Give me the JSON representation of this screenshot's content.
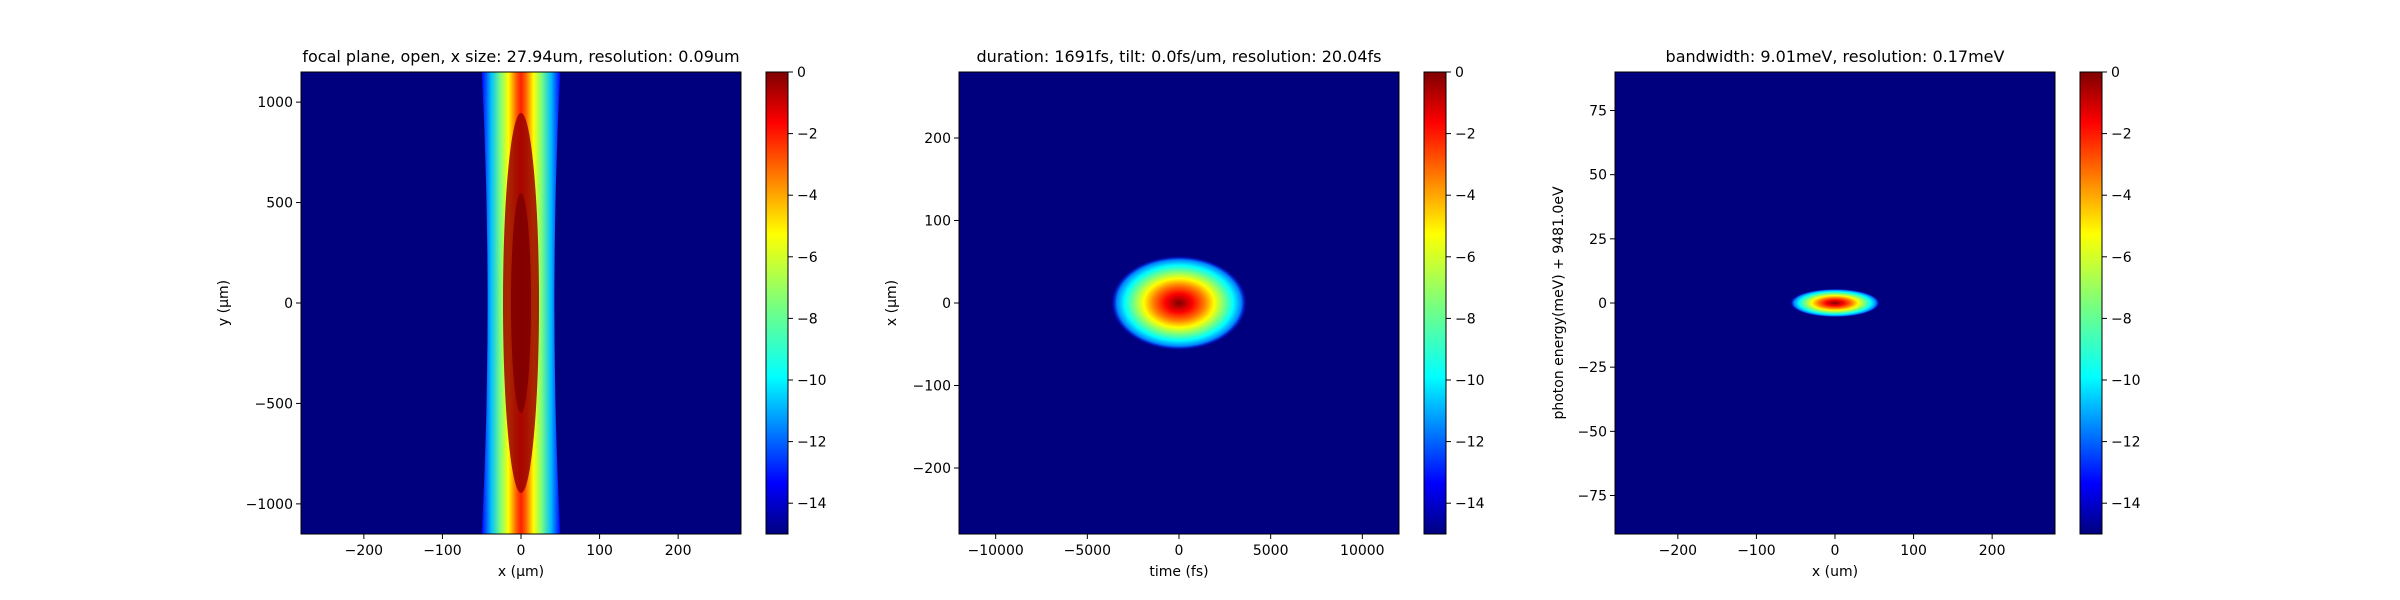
{
  "chart_data": [
    {
      "type": "heatmap",
      "title": "focal plane, open, x size: 27.94um, resolution: 0.09um",
      "xlabel": "x (μm)",
      "ylabel": "y (μm)",
      "xlim": [
        -280,
        280
      ],
      "ylim": [
        -1150,
        1150
      ],
      "xticks": [
        -200,
        -100,
        0,
        100,
        200
      ],
      "yticks": [
        -1000,
        -500,
        0,
        500,
        1000
      ],
      "xtick_labels": [
        "−200",
        "−100",
        "0",
        "100",
        "200"
      ],
      "ytick_labels": [
        "−1000",
        "−500",
        "0",
        "500",
        "1000"
      ],
      "colormap": "jet",
      "clim": [
        -15,
        0
      ],
      "colorbar_ticks": [
        0,
        -2,
        -4,
        -6,
        -8,
        -10,
        -12,
        -14
      ],
      "colorbar_tick_labels": [
        "0",
        "−2",
        "−4",
        "−6",
        "−8",
        "−10",
        "−12",
        "−14"
      ],
      "feature": "vertical beam centered at x = 0, half-width about 50 μm at the top/bottom and about 40 μm at y = 0, peak intensity at the origin"
    },
    {
      "type": "heatmap",
      "title": "duration: 1691fs, tilt: 0.0fs/um, resolution: 20.04fs",
      "xlabel": "time (fs)",
      "ylabel": "x (μm)",
      "xlim": [
        -12000,
        12000
      ],
      "ylim": [
        -280,
        280
      ],
      "xticks": [
        -10000,
        -5000,
        0,
        5000,
        10000
      ],
      "yticks": [
        -200,
        -100,
        0,
        100,
        200
      ],
      "xtick_labels": [
        "−10000",
        "−5000",
        "0",
        "5000",
        "10000"
      ],
      "ytick_labels": [
        "−200",
        "−100",
        "0",
        "100",
        "200"
      ],
      "colormap": "jet",
      "clim": [
        -15,
        0
      ],
      "colorbar_ticks": [
        0,
        -2,
        -4,
        -6,
        -8,
        -10,
        -12,
        -14
      ],
      "colorbar_tick_labels": [
        "0",
        "−2",
        "−4",
        "−6",
        "−8",
        "−10",
        "−12",
        "−14"
      ],
      "feature": "elliptical pulse centered at (0, 0), about 3700 fs half-width in time and about 57 μm half-width in x"
    },
    {
      "type": "heatmap",
      "title": "bandwidth: 9.01meV, resolution: 0.17meV",
      "xlabel": "x (um)",
      "ylabel": "photon energy(meV) + 9481.0eV",
      "xlim": [
        -280,
        280
      ],
      "ylim": [
        -90,
        90
      ],
      "xticks": [
        -200,
        -100,
        0,
        100,
        200
      ],
      "yticks": [
        -75,
        -50,
        -25,
        0,
        25,
        50,
        75
      ],
      "xtick_labels": [
        "−200",
        "−100",
        "0",
        "100",
        "200"
      ],
      "ytick_labels": [
        "−75",
        "−50",
        "−25",
        "0",
        "25",
        "50",
        "75"
      ],
      "colormap": "jet",
      "clim": [
        -15,
        0
      ],
      "colorbar_ticks": [
        0,
        -2,
        -4,
        -6,
        -8,
        -10,
        -12,
        -14
      ],
      "colorbar_tick_labels": [
        "0",
        "−2",
        "−4",
        "−6",
        "−8",
        "−10",
        "−12",
        "−14"
      ],
      "feature": "narrow horizontal ellipse centered at (0, 0), about 57 um half-width in x and about 5.5 meV half-width in energy"
    }
  ]
}
